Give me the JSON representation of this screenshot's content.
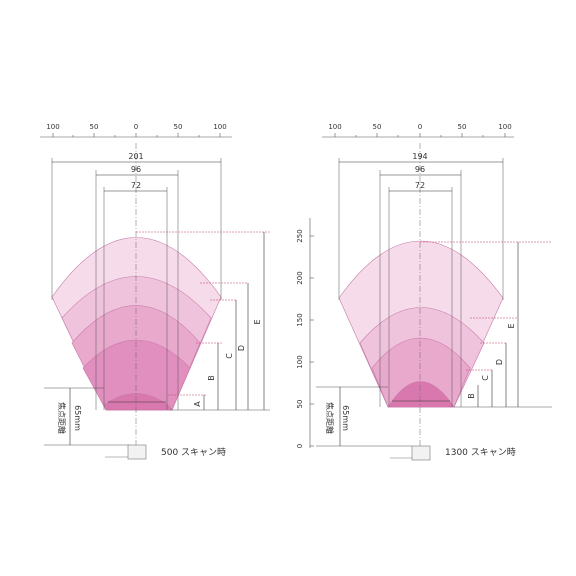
{
  "colors": {
    "zone_1": "#f6dceb",
    "zone_2": "#efc3dc",
    "zone_3": "#e8a9cd",
    "zone_4": "#e18fbe",
    "zone_5": "#d978ae",
    "guide_line": "#555555",
    "red_guide": "#c04060"
  },
  "left_diagram": {
    "scale_ticks": [
      "100",
      "50",
      "0",
      "50",
      "100"
    ],
    "width_labels": [
      "201",
      "96",
      "72"
    ],
    "range_labels": [
      "A",
      "B",
      "C",
      "D",
      "E"
    ],
    "focal_label": "焦点距離",
    "focal_value": "65mm",
    "caption": "500 スキャン時",
    "sensor_icon": "scanner-head-icon"
  },
  "right_diagram": {
    "scale_ticks": [
      "100",
      "50",
      "0",
      "50",
      "100"
    ],
    "vertical_ticks": [
      "250",
      "200",
      "150",
      "100",
      "50",
      "0"
    ],
    "width_labels": [
      "194",
      "96",
      "72"
    ],
    "range_labels": [
      "B",
      "C",
      "D",
      "E"
    ],
    "focal_label": "焦点距離",
    "focal_value": "65mm",
    "caption": "1300 スキャン時",
    "sensor_icon": "scanner-head-icon"
  }
}
